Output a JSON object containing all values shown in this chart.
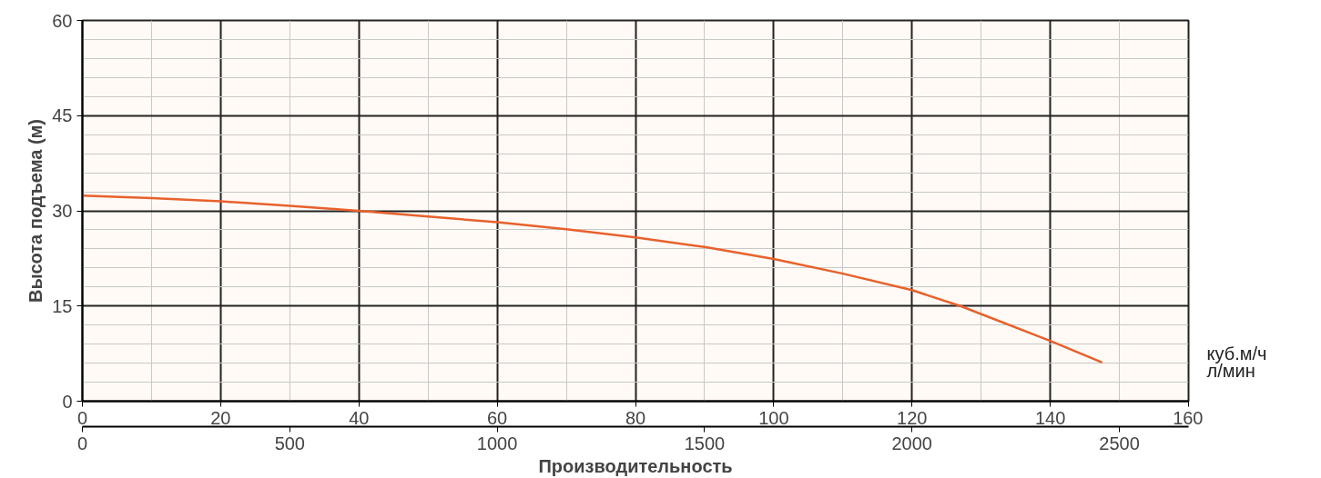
{
  "chart_data": {
    "type": "line",
    "ylabel": "Высота подъема (м)",
    "x2label": "Производительность",
    "x": [
      0,
      10,
      20,
      30,
      40,
      50,
      60,
      70,
      80,
      90,
      100,
      110,
      120,
      127,
      140,
      147.5
    ],
    "series": [
      {
        "color": "#e8612c",
        "values": [
          32.4,
          32.0,
          31.5,
          30.8,
          30.0,
          29.1,
          28.2,
          27.1,
          25.8,
          24.3,
          22.4,
          20.1,
          17.5,
          15.0,
          9.5,
          6.1
        ]
      }
    ],
    "xlim": [
      0,
      160
    ],
    "xticks": [
      0,
      20,
      40,
      60,
      80,
      100,
      120,
      140,
      160
    ],
    "x2lim": [
      0,
      2666.7
    ],
    "x2ticks": [
      0,
      500,
      1000,
      1500,
      2000,
      2500
    ],
    "ylim": [
      0,
      60
    ],
    "yticks": [
      0,
      15,
      30,
      45,
      60
    ],
    "grid": true,
    "marker": "none",
    "line_style": "solid",
    "annotations": [
      "куб.м/ч",
      "л/мин"
    ]
  }
}
